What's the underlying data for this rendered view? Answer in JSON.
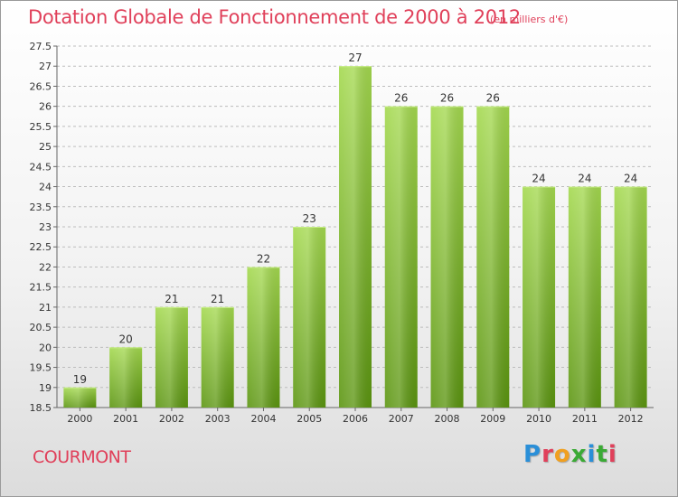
{
  "header": {
    "title": "Dotation Globale de Fonctionnement de 2000 à 2012",
    "subtitle": "(en milliers d'€)"
  },
  "footer": {
    "commune": "COURMONT",
    "logo_text": "Proxiti"
  },
  "colors": {
    "accent": "#e0405a",
    "bar_light": "#9dd44a",
    "bar_dark": "#5f9a12"
  },
  "chart_data": {
    "type": "bar",
    "title": "Dotation Globale de Fonctionnement de 2000 à 2012",
    "subtitle": "(en milliers d'€)",
    "xlabel": "",
    "ylabel": "",
    "categories": [
      "2000",
      "2001",
      "2002",
      "2003",
      "2004",
      "2005",
      "2006",
      "2007",
      "2008",
      "2009",
      "2010",
      "2011",
      "2012"
    ],
    "values": [
      19,
      20,
      21,
      21,
      22,
      23,
      27,
      26,
      26,
      26,
      24,
      24,
      24
    ],
    "ylim": [
      18.5,
      27.5
    ],
    "yticks": [
      18.5,
      19,
      19.5,
      20,
      20.5,
      21,
      21.5,
      22,
      22.5,
      23,
      23.5,
      24,
      24.5,
      25,
      25.5,
      26,
      26.5,
      27,
      27.5
    ],
    "grid": true,
    "data_labels": true
  }
}
